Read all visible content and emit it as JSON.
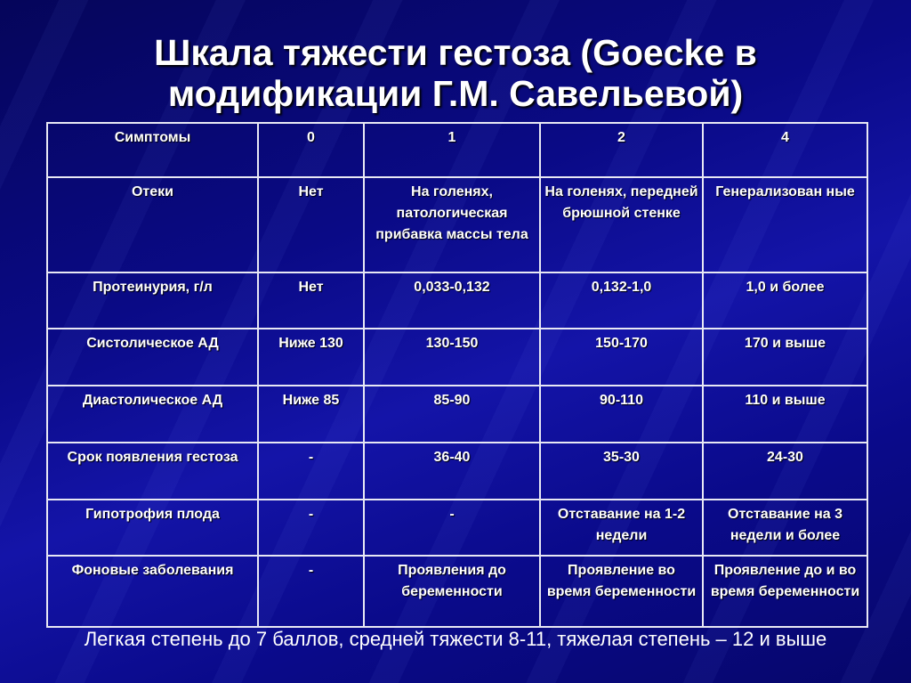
{
  "title_line1": "Шкала тяжести гестоза (Goecke в",
  "title_line2": "модификации Г.М. Савельевой)",
  "table": {
    "rows": [
      [
        "Симптомы",
        "0",
        "1",
        "2",
        "4"
      ],
      [
        "Отеки",
        "Нет",
        "На голенях, патологическая прибавка массы тела",
        "На голенях, передней брюшной стенке",
        "Генерализован ные"
      ],
      [
        "Протеинурия, г/л",
        "Нет",
        "0,033-0,132",
        "0,132-1,0",
        "1,0 и более"
      ],
      [
        "Систолическое АД",
        "Ниже 130",
        "130-150",
        "150-170",
        "170 и выше"
      ],
      [
        "Диастолическое АД",
        "Ниже 85",
        "85-90",
        "90-110",
        "110 и выше"
      ],
      [
        "Срок появления гестоза",
        "-",
        "36-40",
        "35-30",
        "24-30"
      ],
      [
        "Гипотрофия плода",
        "-",
        "-",
        "Отставание на 1-2 недели",
        "Отставание на 3 недели и более"
      ],
      [
        "Фоновые заболевания",
        "-",
        "Проявления до беременности",
        "Проявление во время беременности",
        "Проявление до и во время беременности"
      ]
    ]
  },
  "footer": "Легкая степень до 7 баллов, средней тяжести 8-11, тяжелая степень – 12 и выше"
}
